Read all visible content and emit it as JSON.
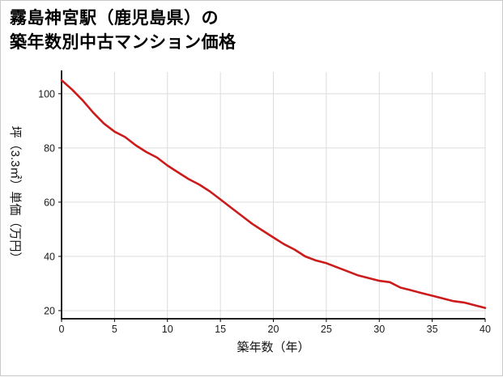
{
  "title": {
    "line1": "霧島神宮駅（鹿児島県）の",
    "line2": "築年数別中古マンション価格"
  },
  "chart_data": {
    "type": "line",
    "title": "霧島神宮駅（鹿児島県）の築年数別中古マンション価格",
    "xlabel": "築年数（年）",
    "ylabel": "坪（3.3㎡）単価（万円）",
    "x": [
      0,
      1,
      2,
      3,
      4,
      5,
      6,
      7,
      8,
      9,
      10,
      11,
      12,
      13,
      14,
      15,
      16,
      17,
      18,
      19,
      20,
      21,
      22,
      23,
      24,
      25,
      26,
      27,
      28,
      29,
      30,
      31,
      32,
      33,
      34,
      35,
      36,
      37,
      38,
      39,
      40
    ],
    "values": [
      105,
      101.5,
      97.5,
      93,
      89,
      86,
      84,
      81,
      78.5,
      76.5,
      73.5,
      71,
      68.5,
      66.5,
      64,
      61,
      58,
      55,
      52,
      49.5,
      47,
      44.5,
      42.5,
      40,
      38.5,
      37.5,
      36,
      34.5,
      33,
      32,
      31,
      30.5,
      28.5,
      27.5,
      26.5,
      25.5,
      24.5,
      23.5,
      23,
      22,
      21
    ],
    "xticks": [
      0,
      5,
      10,
      15,
      20,
      25,
      30,
      35,
      40
    ],
    "yticks": [
      20,
      40,
      60,
      80,
      100
    ],
    "xlim": [
      0,
      40
    ],
    "ylim": [
      17,
      108
    ],
    "grid": true,
    "legend": "none",
    "line_color": "#cc1b1b",
    "grid_color": "#dcdcdc",
    "axis_color": "#000000"
  }
}
